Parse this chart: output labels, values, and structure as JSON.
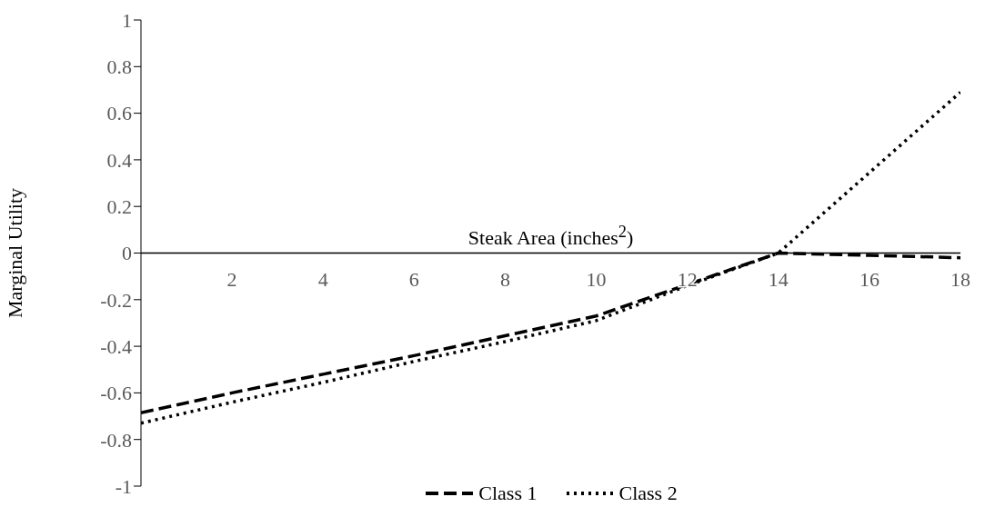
{
  "chart_data": {
    "type": "line",
    "xlabel": "Steak Area (inches$^{2}$)",
    "ylabel": "Marginal Utility",
    "x": [
      0,
      2,
      4,
      6,
      8,
      10,
      12,
      14,
      16,
      18
    ],
    "series": [
      {
        "name": "Class 1",
        "color": "#000000",
        "line_style": "dashed",
        "values": [
          -0.685,
          -0.6,
          -0.52,
          -0.44,
          -0.355,
          -0.27,
          -0.135,
          0.0,
          -0.01,
          -0.02
        ]
      },
      {
        "name": "Class 2",
        "color": "#000000",
        "line_style": "dotted",
        "values": [
          -0.73,
          -0.64,
          -0.555,
          -0.465,
          -0.38,
          -0.29,
          -0.14,
          0.0,
          0.345,
          0.69
        ]
      }
    ],
    "xlim": [
      0,
      18
    ],
    "xticks": [
      2,
      4,
      6,
      8,
      10,
      12,
      14,
      16,
      18
    ],
    "ylim": [
      -1,
      1
    ],
    "yticks": [
      -1,
      -0.8,
      -0.6,
      -0.4,
      -0.2,
      0,
      0.2,
      0.4,
      0.6,
      0.8,
      1
    ],
    "grid": false,
    "legend": "bottom",
    "marker": "none"
  }
}
